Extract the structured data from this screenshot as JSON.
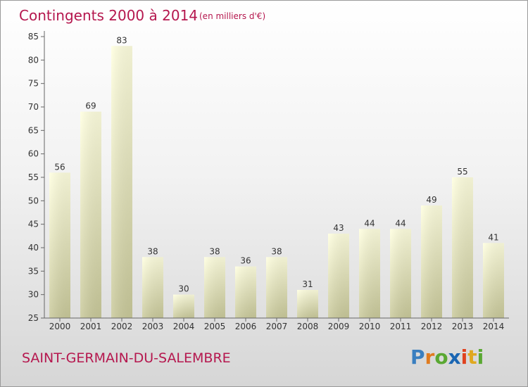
{
  "header": {
    "title": "Contingents 2000 à 2014",
    "subtitle": "(en milliers d'€)"
  },
  "footer": {
    "commune": "SAINT-GERMAIN-DU-SALEMBRE",
    "logo_letters": [
      "P",
      "r",
      "o",
      "x",
      "i",
      "t",
      "i"
    ],
    "logo_colors": [
      "#3a7fc0",
      "#e07b1f",
      "#5aa832",
      "#1a66b3",
      "#e0421f",
      "#e0a81f",
      "#5aa832"
    ]
  },
  "chart_data": {
    "type": "bar",
    "title": "Contingents 2000 à 2014",
    "subtitle": "(en milliers d'€)",
    "categories": [
      "2000",
      "2001",
      "2002",
      "2003",
      "2004",
      "2005",
      "2006",
      "2007",
      "2008",
      "2009",
      "2010",
      "2011",
      "2012",
      "2013",
      "2014"
    ],
    "values": [
      56,
      69,
      83,
      38,
      30,
      38,
      36,
      38,
      31,
      43,
      44,
      44,
      49,
      55,
      41
    ],
    "ylim": [
      25,
      85
    ],
    "yticks": [
      25,
      30,
      35,
      40,
      45,
      50,
      55,
      60,
      65,
      70,
      75,
      80,
      85
    ],
    "grid": false,
    "legend": "none",
    "colors": {
      "bar_top": "#ffffdf",
      "bar_bottom": "#c9c99a",
      "axis": "#666666"
    }
  }
}
